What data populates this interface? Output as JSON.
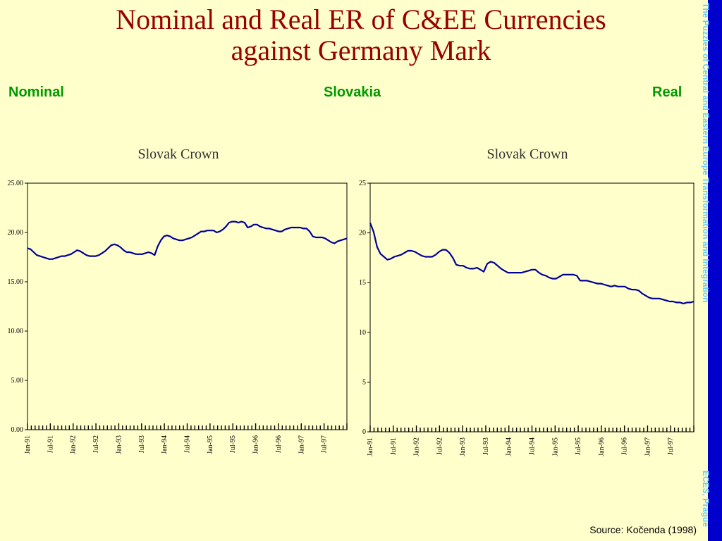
{
  "slide": {
    "title_line1": "Nominal and Real ER of C&EE Currencies",
    "title_line2": "against Germany Mark",
    "label_left": "Nominal",
    "label_center": "Slovakia",
    "label_right": "Real",
    "source": "Source: Kočenda (1998)",
    "sidebar_top": "The Puzzles of Central and Eastern Europe Transformation and Integration",
    "sidebar_bottom": "ECES, Prague"
  },
  "colors": {
    "background": "#ffffcc",
    "title": "#990000",
    "label": "#009900",
    "sidebar": "#0000cc",
    "sidebar_text": "#66ccff",
    "series": "#000099"
  },
  "chart_data": [
    {
      "type": "line",
      "title": "Slovak Crown",
      "x_tick_labels": [
        "Jan-91",
        "Jul-91",
        "Jan-92",
        "Jul-92",
        "Jan-93",
        "Jul-93",
        "Jan-94",
        "Jul-94",
        "Jan-95",
        "Jul-95",
        "Jan-96",
        "Jul-96",
        "Jan-97",
        "Jul-97"
      ],
      "y_tick_labels": [
        "0.00",
        "5.00",
        "10.00",
        "15.00",
        "20.00",
        "25.00"
      ],
      "ylim": [
        0,
        25
      ],
      "months": 84,
      "series": [
        {
          "values": [
            18.4,
            18.3,
            18.0,
            17.7,
            17.6,
            17.5,
            17.4,
            17.3,
            17.3,
            17.4,
            17.5,
            17.6,
            17.6,
            17.7,
            17.8,
            18.0,
            18.2,
            18.1,
            17.9,
            17.7,
            17.6,
            17.6,
            17.6,
            17.7,
            17.9,
            18.1,
            18.4,
            18.7,
            18.8,
            18.7,
            18.5,
            18.2,
            18.0,
            18.0,
            17.9,
            17.8,
            17.8,
            17.8,
            17.9,
            18.0,
            17.9,
            17.7,
            18.6,
            19.2,
            19.6,
            19.7,
            19.6,
            19.4,
            19.3,
            19.2,
            19.2,
            19.3,
            19.4,
            19.5,
            19.7,
            19.9,
            20.1,
            20.1,
            20.2,
            20.2,
            20.2,
            20.0,
            20.1,
            20.3,
            20.6,
            21.0,
            21.1,
            21.1,
            21.0,
            21.1,
            21.0,
            20.5,
            20.6,
            20.8,
            20.8,
            20.6,
            20.5,
            20.4,
            20.4,
            20.3,
            20.2,
            20.1,
            20.1,
            20.3,
            20.4,
            20.5,
            20.5,
            20.5,
            20.5,
            20.4,
            20.4,
            20.1,
            19.6,
            19.5,
            19.5,
            19.5,
            19.4,
            19.2,
            19.0,
            18.9,
            19.1,
            19.2,
            19.3,
            19.4
          ]
        }
      ]
    },
    {
      "type": "line",
      "title": "Slovak Crown",
      "x_tick_labels": [
        "Jan-91",
        "Jul-91",
        "Jan-92",
        "Jul-92",
        "Jan-93",
        "Jul-93",
        "Jan-94",
        "Jul-94",
        "Jan-95",
        "Jul-95",
        "Jan-96",
        "Jul-96",
        "Jan-97",
        "Jul-97"
      ],
      "y_tick_labels": [
        "0",
        "5",
        "10",
        "15",
        "20",
        "25"
      ],
      "ylim": [
        0,
        25
      ],
      "months": 84,
      "series": [
        {
          "values": [
            21.0,
            20.1,
            18.6,
            17.9,
            17.6,
            17.3,
            17.4,
            17.6,
            17.7,
            17.8,
            18.0,
            18.2,
            18.2,
            18.1,
            17.9,
            17.7,
            17.6,
            17.6,
            17.6,
            17.8,
            18.1,
            18.3,
            18.3,
            18.0,
            17.5,
            16.8,
            16.7,
            16.7,
            16.5,
            16.4,
            16.4,
            16.5,
            16.3,
            16.1,
            16.9,
            17.1,
            17.0,
            16.7,
            16.4,
            16.2,
            16.0,
            16.0,
            16.0,
            16.0,
            16.0,
            16.1,
            16.2,
            16.3,
            16.3,
            16.0,
            15.8,
            15.7,
            15.5,
            15.4,
            15.4,
            15.6,
            15.8,
            15.8,
            15.8,
            15.8,
            15.7,
            15.2,
            15.2,
            15.2,
            15.1,
            15.0,
            14.9,
            14.9,
            14.8,
            14.7,
            14.6,
            14.7,
            14.6,
            14.6,
            14.6,
            14.4,
            14.3,
            14.3,
            14.2,
            13.9,
            13.7,
            13.5,
            13.4,
            13.4,
            13.4,
            13.3,
            13.2,
            13.1,
            13.1,
            13.0,
            13.0,
            12.9,
            13.0,
            13.0,
            13.1
          ]
        }
      ]
    }
  ]
}
